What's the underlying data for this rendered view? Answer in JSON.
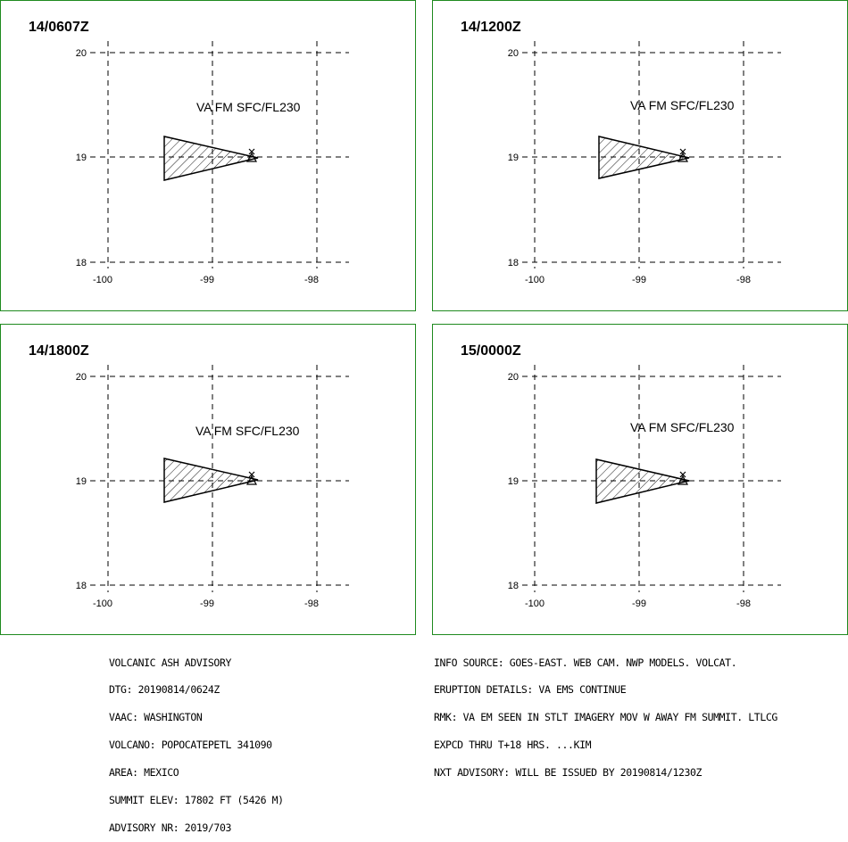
{
  "panels": [
    {
      "valid_time": "14/0607Z",
      "label": "VA FM SFC/FL230"
    },
    {
      "valid_time": "14/1200Z",
      "label": "VA FM SFC/FL230"
    },
    {
      "valid_time": "14/1800Z",
      "label": "VA FM SFC/FL230"
    },
    {
      "valid_time": "15/0000Z",
      "label": "VA FM SFC/FL230"
    }
  ],
  "axes": {
    "lat_ticks": [
      "20",
      "19",
      "18"
    ],
    "lon_ticks": [
      "-100",
      "-99",
      "-98"
    ]
  },
  "advisory_left": [
    "VOLCANIC ASH ADVISORY",
    "DTG: 20190814/0624Z",
    "VAAC: WASHINGTON",
    "VOLCANO: POPOCATEPETL 341090",
    "AREA: MEXICO",
    "SUMMIT ELEV: 17802 FT (5426 M)",
    "ADVISORY NR: 2019/703"
  ],
  "advisory_right": [
    "INFO SOURCE: GOES-EAST. WEB CAM. NWP MODELS. VOLCAT.",
    "ERUPTION DETAILS: VA EMS CONTINUE",
    "RMK: VA EM SEEN IN STLT IMAGERY MOV W AWAY FM SUMMIT. LTLCG",
    "EXPCD THRU T+18 HRS. ...KIM",
    "NXT ADVISORY: WILL BE ISSUED BY 20190814/1230Z"
  ],
  "colors": {
    "panel_border": "#1f8a1f",
    "lines": "#000000"
  },
  "icons": {
    "volcano": "volcano-icon"
  }
}
